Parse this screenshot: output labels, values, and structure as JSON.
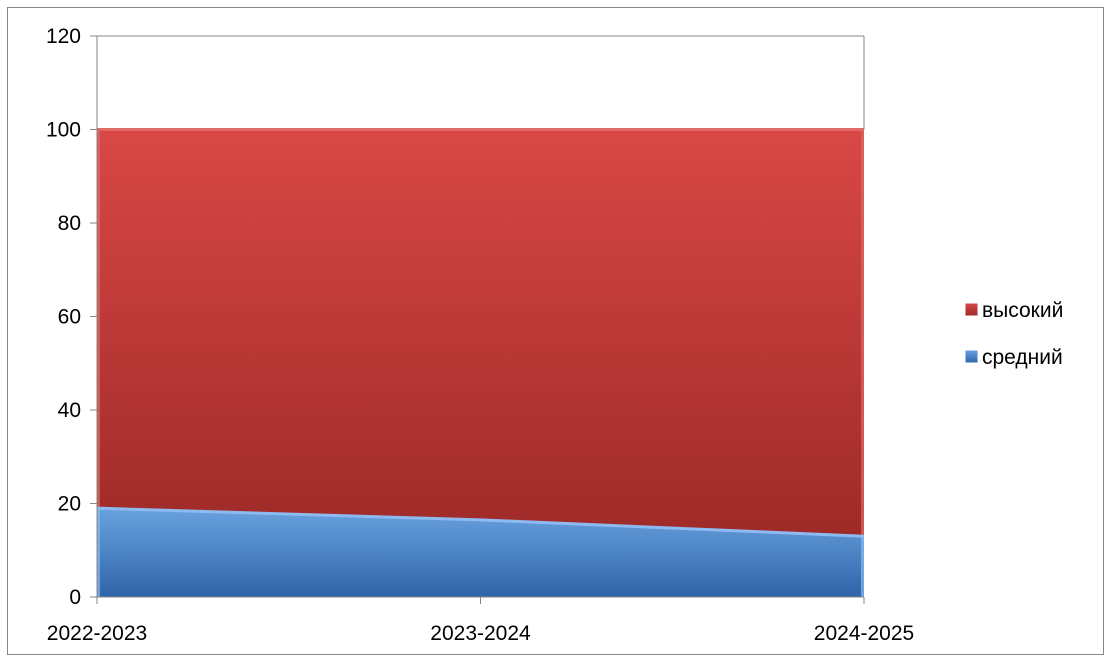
{
  "chart_data": {
    "type": "area",
    "stacked": true,
    "categories": [
      "2022-2023",
      "2023-2024",
      "2024-2025"
    ],
    "series": [
      {
        "name": "средний",
        "values": [
          19,
          16.5,
          13
        ],
        "color": "#4F81BD"
      },
      {
        "name": "высокий",
        "values": [
          81,
          83.5,
          87
        ],
        "color": "#C0504D"
      }
    ],
    "yticks": [
      0,
      20,
      40,
      60,
      80,
      100,
      120
    ],
    "ylim": [
      0,
      120
    ],
    "grid": false,
    "legend": "right",
    "legend_order": [
      "высокий",
      "средний"
    ],
    "title": "",
    "xlabel": "",
    "ylabel": ""
  }
}
